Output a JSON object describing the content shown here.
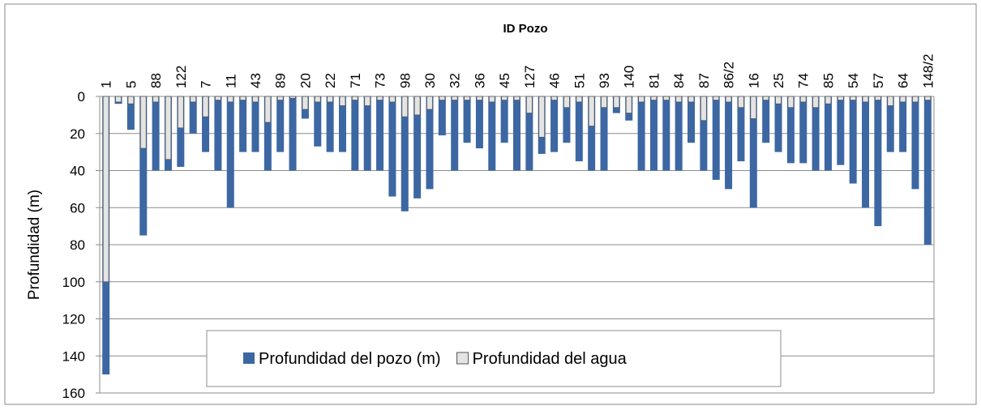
{
  "chart_data": {
    "type": "bar",
    "title": "ID Pozo",
    "y_label": "Profundidad (m)",
    "categories": [
      "1",
      null,
      "5",
      null,
      "88",
      null,
      "122",
      null,
      "7",
      null,
      "11",
      null,
      "43",
      null,
      "89",
      null,
      "20",
      null,
      "22",
      null,
      "71",
      null,
      "73",
      null,
      "98",
      null,
      "30",
      null,
      "32",
      null,
      "36",
      null,
      "45",
      null,
      "127",
      null,
      "46",
      null,
      "51",
      null,
      "93",
      null,
      "140",
      null,
      "81",
      null,
      "84",
      null,
      "87",
      null,
      "86/2",
      null,
      "16",
      null,
      "25",
      null,
      "74",
      null,
      "85",
      null,
      "54",
      null,
      "57",
      null,
      "64",
      null,
      "148/2"
    ],
    "series": [
      {
        "name": "Profundidad del pozo (m)",
        "color": "#3c67a3",
        "values": [
          150,
          4,
          18,
          75,
          40,
          40,
          38,
          20,
          30,
          40,
          60,
          30,
          30,
          40,
          30,
          40,
          12,
          27,
          30,
          30,
          40,
          40,
          40,
          54,
          62,
          55,
          50,
          21,
          40,
          25,
          28,
          40,
          25,
          40,
          40,
          31,
          30,
          25,
          35,
          40,
          40,
          9,
          13,
          40,
          40,
          40,
          40,
          25,
          40,
          45,
          50,
          35,
          60,
          25,
          30,
          36,
          36,
          40,
          40,
          37,
          47,
          60,
          70,
          30,
          30,
          50,
          80
        ]
      },
      {
        "name": "Profundidad del agua",
        "color": "#e4e4e4",
        "values": [
          100,
          3,
          4,
          28,
          3,
          34,
          17,
          3,
          11,
          2,
          3,
          2,
          3,
          14,
          2,
          1,
          7,
          3,
          3,
          5,
          2,
          5,
          2,
          3,
          11,
          10,
          7,
          2,
          2,
          2,
          2,
          3,
          2,
          2,
          9,
          22,
          2,
          6,
          3,
          16,
          6,
          6,
          9,
          3,
          2,
          2,
          3,
          3,
          13,
          2,
          3,
          6,
          12,
          2,
          4,
          6,
          3,
          6,
          4,
          2,
          2,
          3,
          2,
          5,
          3,
          3,
          2
        ]
      }
    ],
    "ylim": [
      0,
      160
    ],
    "yticks": [
      0,
      20,
      40,
      60,
      80,
      100,
      120,
      140,
      160
    ],
    "y_inverted": true,
    "grid": true,
    "legend": "bottom"
  }
}
